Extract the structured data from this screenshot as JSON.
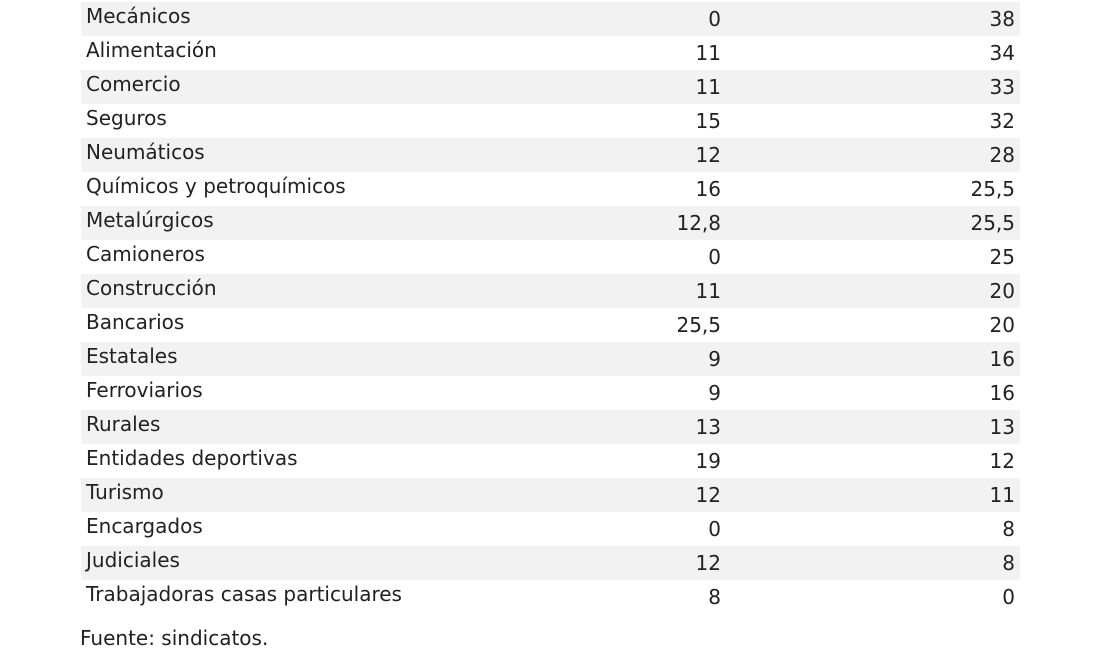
{
  "table": {
    "rows": [
      {
        "name": "Mecánicos",
        "v1": "0",
        "v2": "38"
      },
      {
        "name": "Alimentación",
        "v1": "11",
        "v2": "34"
      },
      {
        "name": "Comercio",
        "v1": "11",
        "v2": "33"
      },
      {
        "name": "Seguros",
        "v1": "15",
        "v2": "32"
      },
      {
        "name": "Neumáticos",
        "v1": "12",
        "v2": "28"
      },
      {
        "name": "Químicos y petroquímicos",
        "v1": "16",
        "v2": "25,5"
      },
      {
        "name": "Metalúrgicos",
        "v1": "12,8",
        "v2": "25,5"
      },
      {
        "name": "Camioneros",
        "v1": "0",
        "v2": "25"
      },
      {
        "name": "Construcción",
        "v1": "11",
        "v2": "20"
      },
      {
        "name": "Bancarios",
        "v1": "25,5",
        "v2": "20"
      },
      {
        "name": "Estatales",
        "v1": "9",
        "v2": "16"
      },
      {
        "name": "Ferroviarios",
        "v1": "9",
        "v2": "16"
      },
      {
        "name": "Rurales",
        "v1": "13",
        "v2": "13"
      },
      {
        "name": "Entidades deportivas",
        "v1": "19",
        "v2": "12"
      },
      {
        "name": "Turismo",
        "v1": "12",
        "v2": "11"
      },
      {
        "name": "Encargados",
        "v1": "0",
        "v2": "8"
      },
      {
        "name": "Judiciales",
        "v1": "12",
        "v2": "8"
      },
      {
        "name": "Trabajadoras casas particulares",
        "v1": "8",
        "v2": "0"
      }
    ]
  },
  "footer": {
    "source": "Fuente: sindicatos."
  },
  "colors": {
    "stripe": "#f2f2f2",
    "text": "#222222"
  }
}
